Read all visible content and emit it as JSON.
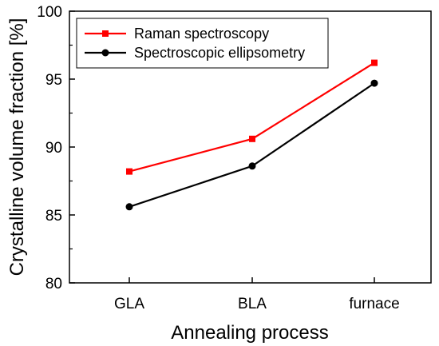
{
  "chart_data": {
    "type": "line",
    "categories": [
      "GLA",
      "BLA",
      "furnace"
    ],
    "xlabel": "Annealing process",
    "ylabel": "Crystalline volume fraction [%]",
    "ylim": [
      80,
      100
    ],
    "yticks": [
      "80",
      "85",
      "90",
      "95",
      "100"
    ],
    "grid": false,
    "legend_position": "top-left",
    "series": [
      {
        "name": "Raman spectroscopy",
        "values": [
          88.2,
          90.6,
          96.2
        ],
        "color": "#ff0000",
        "marker": "square"
      },
      {
        "name": "Spectroscopic ellipsometry",
        "values": [
          85.6,
          88.6,
          94.7
        ],
        "color": "#000000",
        "marker": "circle"
      }
    ]
  }
}
